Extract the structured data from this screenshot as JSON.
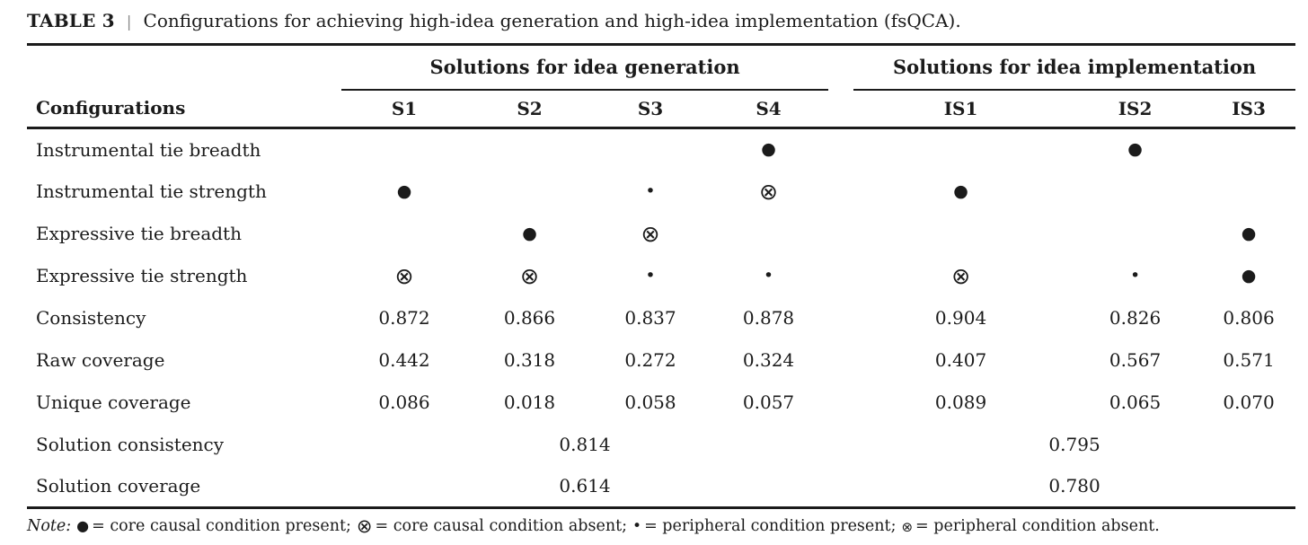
{
  "title": {
    "label": "TABLE 3",
    "separator": "|",
    "text": "Configurations for achieving high-idea generation and high-idea implementation (fsQCA)."
  },
  "table": {
    "row_header": "Configurations",
    "groups": {
      "generation": "Solutions for idea generation",
      "implementation": "Solutions for idea implementation"
    },
    "columns": {
      "s1": "S1",
      "s2": "S2",
      "s3": "S3",
      "s4": "S4",
      "is1": "IS1",
      "is2": "IS2",
      "is3": "IS3"
    },
    "symbols_legend": {
      "core_present": "●",
      "core_absent": "⊗",
      "peripheral_present": "•",
      "peripheral_absent": "⊗"
    },
    "rows": [
      {
        "label": "Instrumental tie breadth",
        "s1": "",
        "s2": "",
        "s3": "",
        "s4": "●",
        "is1": "",
        "is2": "●",
        "is3": ""
      },
      {
        "label": "Instrumental tie strength",
        "s1": "●",
        "s2": "",
        "s3": "•",
        "s4": "⊗",
        "is1": "●",
        "is2": "",
        "is3": ""
      },
      {
        "label": "Expressive tie breadth",
        "s1": "",
        "s2": "●",
        "s3": "⊗",
        "s4": "",
        "is1": "",
        "is2": "",
        "is3": "●"
      },
      {
        "label": "Expressive tie strength",
        "s1": "⊗",
        "s2": "⊗",
        "s3": "•",
        "s4": "•",
        "is1": "⊗",
        "is2": "•",
        "is3": "●"
      },
      {
        "label": "Consistency",
        "s1": "0.872",
        "s2": "0.866",
        "s3": "0.837",
        "s4": "0.878",
        "is1": "0.904",
        "is2": "0.826",
        "is3": "0.806"
      },
      {
        "label": "Raw coverage",
        "s1": "0.442",
        "s2": "0.318",
        "s3": "0.272",
        "s4": "0.324",
        "is1": "0.407",
        "is2": "0.567",
        "is3": "0.571"
      },
      {
        "label": "Unique coverage",
        "s1": "0.086",
        "s2": "0.018",
        "s3": "0.058",
        "s4": "0.057",
        "is1": "0.089",
        "is2": "0.065",
        "is3": "0.070"
      }
    ],
    "summary_rows": [
      {
        "label": "Solution consistency",
        "generation": "0.814",
        "implementation": "0.795"
      },
      {
        "label": "Solution coverage",
        "generation": "0.614",
        "implementation": "0.780"
      }
    ]
  },
  "note": {
    "label": "Note:",
    "segments": [
      {
        "symbol": "●",
        "text": "= core causal condition present;"
      },
      {
        "symbol": "⊗",
        "text": "= core causal condition absent;"
      },
      {
        "symbol": "•",
        "text": "= peripheral condition present;"
      },
      {
        "symbol": "⊗",
        "text": "= peripheral condition absent."
      }
    ]
  }
}
